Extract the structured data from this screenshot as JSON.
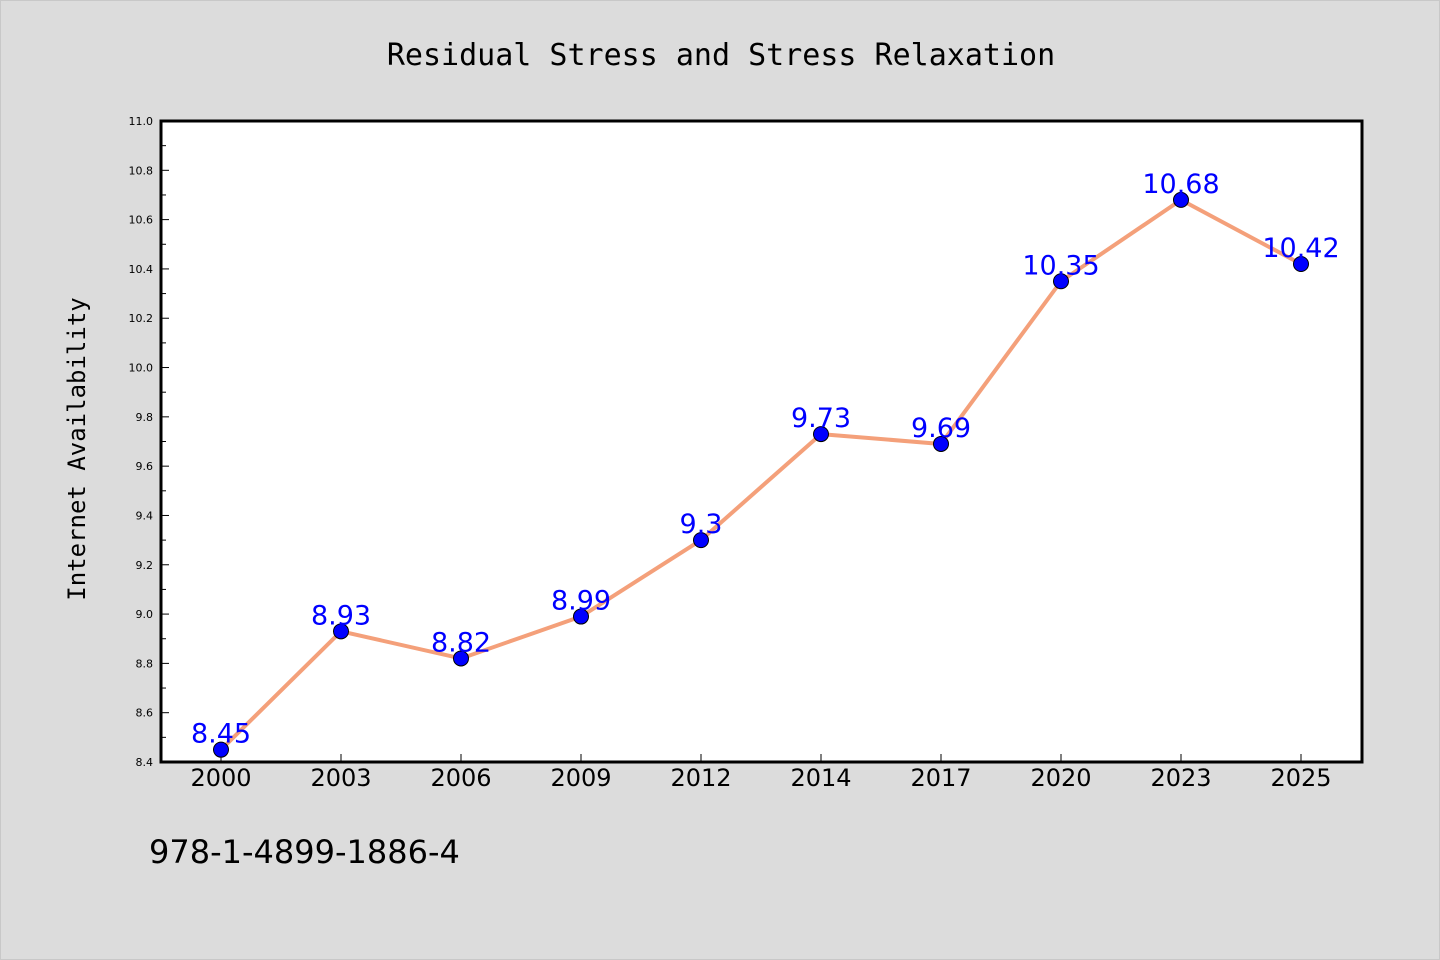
{
  "footer": {
    "isbn": "978-1-4899-1886-4"
  },
  "chart_data": {
    "type": "line",
    "title": "Residual Stress and Stress Relaxation",
    "xlabel": "",
    "ylabel": "Internet Availability",
    "categories": [
      "2000",
      "2003",
      "2006",
      "2009",
      "2012",
      "2014",
      "2017",
      "2020",
      "2023",
      "2025"
    ],
    "series": [
      {
        "values": [
          8.45,
          8.93,
          8.82,
          8.99,
          9.3,
          9.73,
          9.69,
          10.35,
          10.68,
          10.42
        ],
        "data_labels": [
          "8.45",
          "8.93",
          "8.82",
          "8.99",
          "9.3",
          "9.73",
          "9.69",
          "10.35",
          "10.68",
          "10.42"
        ],
        "line_color": "#f4a07a",
        "marker_color": "#0000ff"
      }
    ],
    "ylim": [
      8.4,
      11.0
    ],
    "yticks": [
      "8.4",
      "8.6",
      "8.8",
      "9.0",
      "9.2",
      "9.4",
      "9.6",
      "9.8",
      "10.0",
      "10.2",
      "10.4",
      "10.6",
      "10.8",
      "11.0"
    ],
    "grid": false,
    "legend": "none",
    "colors": {
      "background": "#dcdcdc",
      "plot_background": "#ffffff",
      "label_color": "#0000ff"
    }
  }
}
